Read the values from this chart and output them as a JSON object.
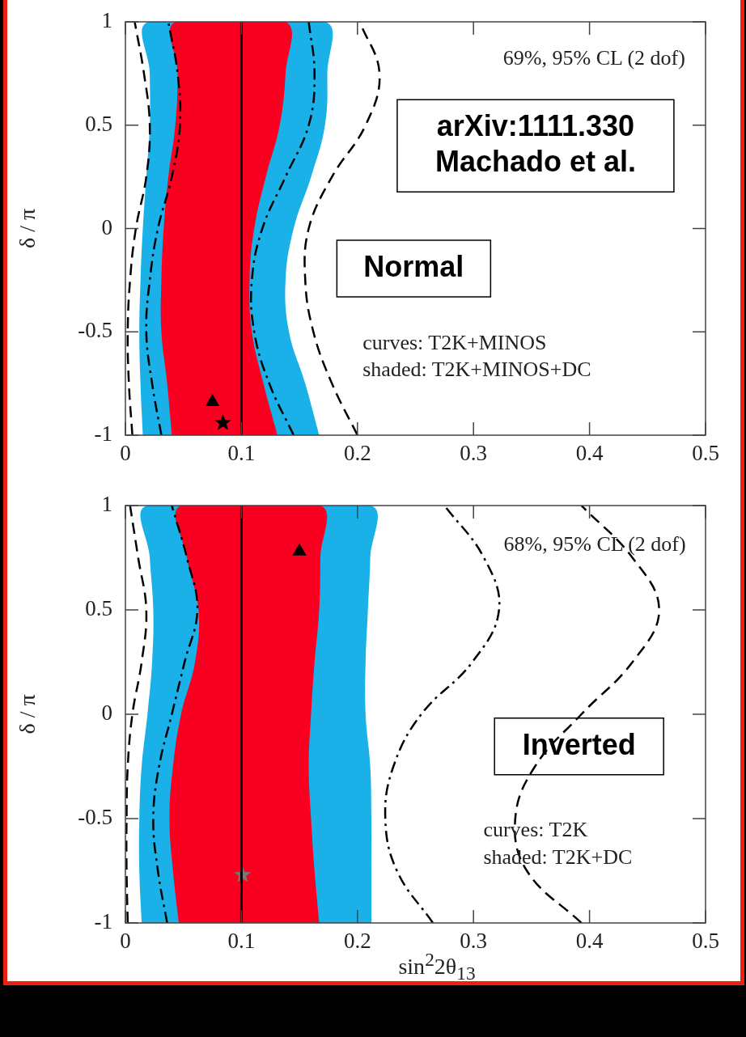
{
  "chart_data": [
    {
      "type": "line",
      "ylabel": "δ / π",
      "xlim": [
        0,
        0.5
      ],
      "ylim": [
        -1,
        1
      ],
      "xticks": [
        0,
        0.1,
        0.2,
        0.3,
        0.4,
        0.5
      ],
      "yticks": [
        -1,
        -0.5,
        0,
        0.5,
        1
      ],
      "annotations": [
        "69%, 95% CL (2 dof)",
        "arXiv:1111.330\nMachado et al.",
        "Normal",
        "curves: T2K+MINOS",
        "shaded: T2K+MINOS+DC"
      ],
      "ref_lines": [
        {
          "axis": "x",
          "value": 0.1,
          "color": "#000000"
        }
      ],
      "series": [
        {
          "type": "area",
          "color": "#1ab0e8",
          "x": [
            0.015,
            0.013,
            0.012,
            0.013,
            0.015,
            0.018,
            0.021,
            0.021,
            0.02,
            0.172,
            0.174,
            0.172,
            0.16,
            0.145,
            0.138,
            0.141,
            0.155,
            0.167
          ],
          "values": [
            -1,
            -0.75,
            -0.5,
            -0.25,
            0,
            0.25,
            0.5,
            0.75,
            1,
            1,
            0.75,
            0.5,
            0.25,
            0,
            -0.25,
            -0.5,
            -0.75,
            -1
          ]
        },
        {
          "type": "area",
          "color": "#fa0020",
          "x": [
            0.04,
            0.036,
            0.031,
            0.031,
            0.033,
            0.037,
            0.043,
            0.045,
            0.043,
            0.138,
            0.138,
            0.133,
            0.121,
            0.111,
            0.107,
            0.109,
            0.119,
            0.131
          ],
          "values": [
            -1,
            -0.75,
            -0.5,
            -0.25,
            0,
            0.25,
            0.5,
            0.75,
            1,
            1,
            0.75,
            0.5,
            0.25,
            0,
            -0.25,
            -0.5,
            -0.75,
            -1
          ]
        },
        {
          "type": "line",
          "color": "#000000",
          "line_style": "dotted",
          "x": [
            0.031,
            0.023,
            0.018,
            0.021,
            0.028,
            0.04,
            0.047,
            0.045,
            0.037
          ],
          "values": [
            -1,
            -0.75,
            -0.5,
            -0.25,
            0,
            0.25,
            0.5,
            0.75,
            1
          ]
        },
        {
          "type": "line",
          "color": "#000000",
          "line_style": "dotted",
          "x": [
            0.145,
            0.124,
            0.111,
            0.109,
            0.118,
            0.138,
            0.158,
            0.163,
            0.158
          ],
          "values": [
            -1,
            -0.75,
            -0.5,
            -0.25,
            0,
            0.25,
            0.5,
            0.75,
            1
          ]
        },
        {
          "type": "line",
          "color": "#000000",
          "line_style": "dashed",
          "x": [
            0.006,
            0.003,
            0.002,
            0.004,
            0.009,
            0.018,
            0.021,
            0.016,
            0.008
          ],
          "values": [
            -1,
            -0.75,
            -0.5,
            -0.25,
            0,
            0.25,
            0.5,
            0.75,
            1
          ]
        },
        {
          "type": "line",
          "color": "#000000",
          "line_style": "dashed",
          "x": [
            0.2,
            0.178,
            0.162,
            0.155,
            0.158,
            0.178,
            0.207,
            0.219,
            0.202
          ],
          "values": [
            -1,
            -0.75,
            -0.5,
            -0.25,
            0,
            0.25,
            0.5,
            0.75,
            1
          ]
        },
        {
          "type": "scatter",
          "color": "#000000",
          "marker": "triangle",
          "x": [
            0.075
          ],
          "values": [
            -0.84
          ]
        },
        {
          "type": "scatter",
          "color": "#000000",
          "marker": "star",
          "x": [
            0.084
          ],
          "values": [
            -0.94
          ]
        }
      ]
    },
    {
      "type": "line",
      "ylabel": "δ / π",
      "xlabel": "sin$^{2}$2θ$_{13}$",
      "xlim": [
        0,
        0.5
      ],
      "ylim": [
        -1,
        1
      ],
      "xticks": [
        0,
        0.1,
        0.2,
        0.3,
        0.4,
        0.5
      ],
      "yticks": [
        -1,
        -0.5,
        0,
        0.5,
        1
      ],
      "annotations": [
        "68%, 95% CL (2 dof)",
        "Inverted",
        "curves: T2K",
        "shaded: T2K+DC"
      ],
      "ref_lines": [
        {
          "axis": "x",
          "value": 0.1,
          "color": "#000000"
        }
      ],
      "series": [
        {
          "type": "area",
          "color": "#1ab0e8",
          "x": [
            0.014,
            0.012,
            0.012,
            0.014,
            0.019,
            0.023,
            0.024,
            0.021,
            0.019,
            0.211,
            0.211,
            0.209,
            0.207,
            0.207,
            0.211,
            0.212,
            0.212,
            0.212
          ],
          "values": [
            -1,
            -0.75,
            -0.5,
            -0.25,
            0,
            0.25,
            0.5,
            0.75,
            1,
            1,
            0.75,
            0.5,
            0.25,
            0,
            -0.25,
            -0.5,
            -0.75,
            -1
          ]
        },
        {
          "type": "area",
          "color": "#fa0020",
          "x": [
            0.046,
            0.041,
            0.038,
            0.041,
            0.048,
            0.06,
            0.063,
            0.053,
            0.048,
            0.168,
            0.168,
            0.167,
            0.163,
            0.16,
            0.158,
            0.16,
            0.163,
            0.167
          ],
          "values": [
            -1,
            -0.75,
            -0.5,
            -0.25,
            0,
            0.25,
            0.5,
            0.75,
            1,
            1,
            0.75,
            0.5,
            0.25,
            0,
            -0.25,
            -0.5,
            -0.75,
            -1
          ]
        },
        {
          "type": "line",
          "color": "#000000",
          "line_style": "dotted",
          "x": [
            0.036,
            0.028,
            0.024,
            0.029,
            0.04,
            0.051,
            0.062,
            0.053,
            0.04
          ],
          "values": [
            -1,
            -0.75,
            -0.5,
            -0.25,
            0,
            0.25,
            0.5,
            0.75,
            1
          ]
        },
        {
          "type": "line",
          "color": "#000000",
          "line_style": "dotted",
          "x": [
            0.265,
            0.234,
            0.224,
            0.231,
            0.255,
            0.299,
            0.322,
            0.309,
            0.275
          ],
          "values": [
            -1,
            -0.75,
            -0.5,
            -0.25,
            0,
            0.25,
            0.5,
            0.75,
            1
          ]
        },
        {
          "type": "line",
          "color": "#000000",
          "line_style": "dashed",
          "x": [
            0.002,
            0.001,
            0.001,
            0.002,
            0.006,
            0.014,
            0.018,
            0.011,
            0.004
          ],
          "values": [
            -1,
            -0.75,
            -0.5,
            -0.25,
            0,
            0.25,
            0.5,
            0.75,
            1
          ]
        },
        {
          "type": "line",
          "color": "#000000",
          "line_style": "dashed",
          "x": [
            0.393,
            0.346,
            0.336,
            0.353,
            0.393,
            0.437,
            0.46,
            0.437,
            0.393
          ],
          "values": [
            -1,
            -0.75,
            -0.5,
            -0.25,
            0,
            0.25,
            0.5,
            0.75,
            1
          ]
        },
        {
          "type": "scatter",
          "color": "#000000",
          "marker": "triangle",
          "x": [
            0.15
          ],
          "values": [
            0.78
          ]
        },
        {
          "type": "scatter",
          "color": "#777777",
          "marker": "star",
          "x": [
            0.101
          ],
          "values": [
            -0.77
          ]
        }
      ]
    }
  ]
}
